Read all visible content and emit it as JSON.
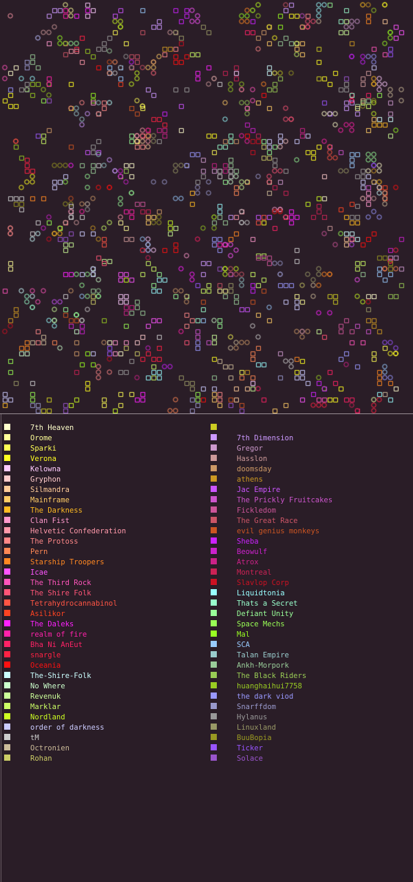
{
  "legend": {
    "left": [
      {
        "name": "7th Heaven",
        "color": "#ffffcc"
      },
      {
        "name": "Orome",
        "color": "#ffff99"
      },
      {
        "name": "Sparki",
        "color": "#ffff55"
      },
      {
        "name": "Verona",
        "color": "#ffff22"
      },
      {
        "name": "Kelowna",
        "color": "#ffccff"
      },
      {
        "name": "Gryphon",
        "color": "#ffcccc"
      },
      {
        "name": "Silmandra",
        "color": "#ffcc99"
      },
      {
        "name": "Mainframe",
        "color": "#ffcc66"
      },
      {
        "name": "The Darkness",
        "color": "#ffbb22"
      },
      {
        "name": "Clan Fist",
        "color": "#ff99cc"
      },
      {
        "name": "Helvetic Confederation",
        "color": "#ff99aa"
      },
      {
        "name": "The Protoss",
        "color": "#ff8888"
      },
      {
        "name": "Pern",
        "color": "#ff8855"
      },
      {
        "name": "Starship Troopers",
        "color": "#ff8822"
      },
      {
        "name": "Icae",
        "color": "#ff55ff"
      },
      {
        "name": "The Third Rock",
        "color": "#ff55bb"
      },
      {
        "name": "The Shire Folk",
        "color": "#ff5577"
      },
      {
        "name": "Tetrahydrocannabinol",
        "color": "#ff5544"
      },
      {
        "name": "Asilikor",
        "color": "#ff4422"
      },
      {
        "name": "The Daleks",
        "color": "#ff22ff"
      },
      {
        "name": "realm of fire",
        "color": "#ff22aa"
      },
      {
        "name": "Bha Ni AnEut",
        "color": "#ff2266"
      },
      {
        "name": "snargle",
        "color": "#ff2244"
      },
      {
        "name": "Oceania",
        "color": "#ff1111"
      },
      {
        "name": "The-Shire-Folk",
        "color": "#ccffff"
      },
      {
        "name": "No Where",
        "color": "#ccffcc"
      },
      {
        "name": "Revenuk",
        "color": "#ccff99"
      },
      {
        "name": "Marklar",
        "color": "#ccff66"
      },
      {
        "name": "Nordland",
        "color": "#ccff22"
      },
      {
        "name": "order of darkness",
        "color": "#ccccff"
      },
      {
        "name": "tM",
        "color": "#cccccc"
      },
      {
        "name": "Octronien",
        "color": "#ccbb99"
      },
      {
        "name": "Rohan",
        "color": "#cccc66"
      }
    ],
    "right": [
      {
        "name": "",
        "color": "#cccc22"
      },
      {
        "name": "7th Dimension",
        "color": "#cc99ff"
      },
      {
        "name": "Gregor",
        "color": "#cc99cc"
      },
      {
        "name": "Hasslon",
        "color": "#cc9999"
      },
      {
        "name": "doomsday",
        "color": "#cc9966"
      },
      {
        "name": "athens",
        "color": "#cc9922"
      },
      {
        "name": "Jac Empire",
        "color": "#cc55ff"
      },
      {
        "name": "The Prickly Fruitcakes",
        "color": "#cc55cc"
      },
      {
        "name": "Fickledom",
        "color": "#cc5599"
      },
      {
        "name": "The Great Race",
        "color": "#cc5566"
      },
      {
        "name": "evil genius monkeys",
        "color": "#cc5522"
      },
      {
        "name": "Sheba",
        "color": "#cc22ff"
      },
      {
        "name": "Beowulf",
        "color": "#cc22cc"
      },
      {
        "name": "Atrox",
        "color": "#cc2288"
      },
      {
        "name": "Montreal",
        "color": "#cc2255"
      },
      {
        "name": "Slavlop Corp",
        "color": "#cc1122"
      },
      {
        "name": "Liquidtonia",
        "color": "#99ffff"
      },
      {
        "name": "Thats a Secret",
        "color": "#99ffcc"
      },
      {
        "name": "Defiant Unity",
        "color": "#99ff99"
      },
      {
        "name": "Space Mechs",
        "color": "#99ff55"
      },
      {
        "name": "Mal",
        "color": "#99ff22"
      },
      {
        "name": "SCA",
        "color": "#99ccff"
      },
      {
        "name": "Talan Empire",
        "color": "#99cccc"
      },
      {
        "name": "Ankh-Morpork",
        "color": "#99cc99"
      },
      {
        "name": "The Black Riders",
        "color": "#99cc55"
      },
      {
        "name": "huanghaihui7758",
        "color": "#99cc22"
      },
      {
        "name": "the dark viod",
        "color": "#9999ff"
      },
      {
        "name": "Snarffdom",
        "color": "#9999cc"
      },
      {
        "name": "Hylanus",
        "color": "#999999"
      },
      {
        "name": "Linuxland",
        "color": "#999966"
      },
      {
        "name": "BuuBopia",
        "color": "#999922"
      },
      {
        "name": "Ticker",
        "color": "#9955ff"
      },
      {
        "name": "Solace",
        "color": "#9955cc"
      }
    ]
  }
}
